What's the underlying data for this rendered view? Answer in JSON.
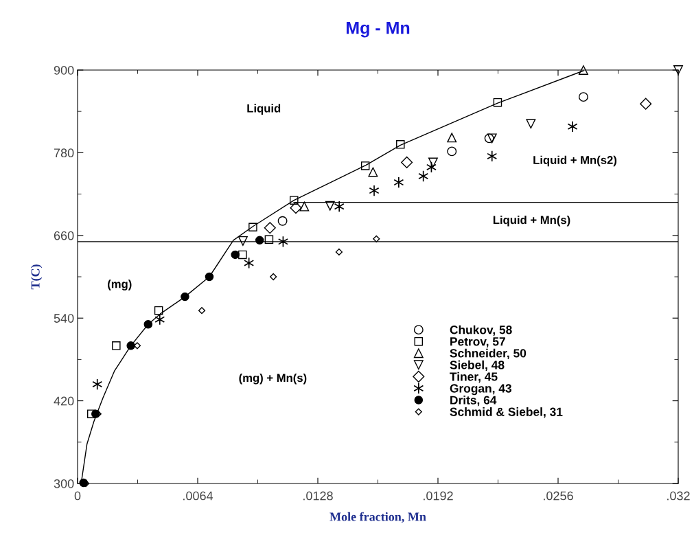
{
  "chart_data": {
    "type": "scatter",
    "title": "Mg - Mn",
    "xlabel": "Mole fraction, Mn",
    "ylabel": "T(C)",
    "xlim": [
      0,
      0.032
    ],
    "ylim": [
      300,
      900
    ],
    "xticks": [
      {
        "value": 0,
        "label": "0"
      },
      {
        "value": 0.0064,
        "label": ".0064"
      },
      {
        "value": 0.0128,
        "label": ".0128"
      },
      {
        "value": 0.0192,
        "label": ".0192"
      },
      {
        "value": 0.0256,
        "label": ".0256"
      },
      {
        "value": 0.032,
        "label": ".032"
      }
    ],
    "yticks": [
      300,
      420,
      540,
      660,
      780,
      900
    ],
    "grid": false,
    "legend": "bottom right",
    "series": [
      {
        "type": "line",
        "color": "#000000",
        "marker": "none",
        "line_style": "solid",
        "x": [
          0.00019,
          0.0005,
          0.00087,
          0.00135,
          0.00196,
          0.00284,
          0.00376,
          0.0044,
          0.00572,
          0.00702,
          0.0083,
          0.00934,
          0.01153,
          0.01537,
          0.0172,
          0.02238,
          0.02695
        ],
        "values": [
          300,
          357,
          390,
          424,
          463,
          500,
          531,
          546,
          571,
          600,
          653,
          673,
          711,
          762,
          791,
          852,
          899
        ]
      },
      {
        "type": "line",
        "color": "#000000",
        "marker": "none",
        "line_style": "solid",
        "x": [
          0,
          0.032
        ],
        "values": [
          651,
          651
        ]
      },
      {
        "type": "line",
        "color": "#000000",
        "marker": "none",
        "line_style": "solid",
        "x": [
          0.01152,
          0.032
        ],
        "values": [
          708,
          708
        ]
      },
      {
        "name": "Chukov, 58",
        "color": "#000000",
        "marker": "circle",
        "x": [
          0.01092,
          0.01994,
          0.02193,
          0.02695
        ],
        "values": [
          681,
          782,
          801,
          861
        ]
      },
      {
        "name": "Petrov, 57",
        "color": "#000000",
        "marker": "square",
        "x": [
          0.00074,
          0.00206,
          0.00432,
          0.00879,
          0.00934,
          0.0102,
          0.01153,
          0.01533,
          0.0172,
          0.02238
        ],
        "values": [
          401,
          500,
          551,
          632,
          672,
          654,
          711,
          761,
          792,
          853
        ]
      },
      {
        "name": "Schneider, 50",
        "color": "#000000",
        "marker": "triangle",
        "x": [
          0.01208,
          0.01574,
          0.01994,
          0.02695
        ],
        "values": [
          702,
          752,
          802,
          900
        ]
      },
      {
        "name": "Siebel, 48",
        "color": "#000000",
        "marker": "triangle_down",
        "x": [
          0.00881,
          0.01345,
          0.01894,
          0.02208,
          0.02415,
          0.032
        ],
        "values": [
          652,
          703,
          766,
          801,
          822,
          900
        ]
      },
      {
        "name": "Tiner, 45",
        "color": "#000000",
        "marker": "diamond",
        "x": [
          0.01025,
          0.01163,
          0.01754,
          0.03027
        ],
        "values": [
          671,
          700,
          766,
          851
        ]
      },
      {
        "name": "Grogan, 43",
        "color": "#000000",
        "marker": "cross",
        "x": [
          0.00105,
          0.00438,
          0.00913,
          0.01095,
          0.01394,
          0.0158,
          0.01711,
          0.01842,
          0.01885,
          0.02208,
          0.02637
        ],
        "values": [
          444,
          538,
          620,
          651,
          702,
          725,
          737,
          746,
          759,
          775,
          818
        ]
      },
      {
        "name": "Drits, 64",
        "color": "#000000",
        "marker": "half_circle",
        "x": [
          0.00032,
          0.00096,
          0.00284,
          0.00376,
          0.00572,
          0.00702,
          0.0084,
          0.0097
        ],
        "values": [
          301,
          401,
          500,
          531,
          571,
          600,
          632,
          653
        ]
      },
      {
        "name": "Schmid & Siebel, 31",
        "color": "#000000",
        "marker": "diamond",
        "x": [
          0.00044,
          0.00109,
          0.00318,
          0.00662,
          0.01043,
          0.01393,
          0.01592
        ],
        "values": [
          300,
          401,
          500,
          551,
          600,
          636,
          655
        ]
      }
    ],
    "annotations": [
      "Liquid",
      "(mg)",
      "(mg) + Mn(s)",
      "Liquid + Mn(s)",
      "Liquid + Mn(s2)"
    ]
  }
}
